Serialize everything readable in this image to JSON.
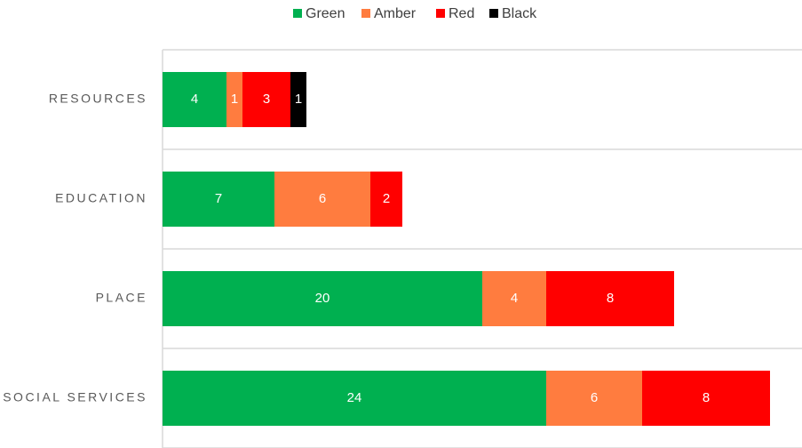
{
  "chart_data": {
    "type": "stacked-barh",
    "categories": [
      "RESOURCES",
      "EDUCATION",
      "PLACE",
      "SOCIAL SERVICES"
    ],
    "series": [
      {
        "name": "Green",
        "color": "#00b050",
        "values": [
          4,
          7,
          20,
          24
        ]
      },
      {
        "name": "Amber",
        "color": "#ff7c3f",
        "values": [
          1,
          6,
          4,
          6
        ]
      },
      {
        "name": "Red",
        "color": "#ff0000",
        "values": [
          3,
          2,
          8,
          8
        ]
      },
      {
        "name": "Black",
        "color": "#000000",
        "values": [
          1,
          null,
          null,
          null
        ]
      }
    ],
    "xlim": [
      0,
      40
    ],
    "legend": "top"
  }
}
